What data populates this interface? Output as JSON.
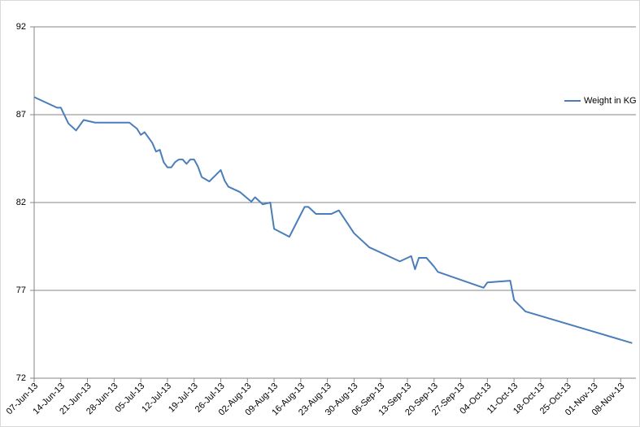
{
  "chart_data": {
    "type": "line",
    "x": [
      "2013-06-07",
      "2013-06-13",
      "2013-06-14",
      "2013-06-16",
      "2013-06-18",
      "2013-06-20",
      "2013-06-23",
      "2013-07-02",
      "2013-07-04",
      "2013-07-05",
      "2013-07-06",
      "2013-07-08",
      "2013-07-09",
      "2013-07-10",
      "2013-07-11",
      "2013-07-12",
      "2013-07-13",
      "2013-07-14",
      "2013-07-15",
      "2013-07-16",
      "2013-07-17",
      "2013-07-18",
      "2013-07-19",
      "2013-07-20",
      "2013-07-21",
      "2013-07-23",
      "2013-07-26",
      "2013-07-27",
      "2013-07-28",
      "2013-07-31",
      "2013-08-03",
      "2013-08-04",
      "2013-08-06",
      "2013-08-08",
      "2013-08-09",
      "2013-08-13",
      "2013-08-17",
      "2013-08-18",
      "2013-08-20",
      "2013-08-24",
      "2013-08-26",
      "2013-08-30",
      "2013-09-03",
      "2013-09-11",
      "2013-09-14",
      "2013-09-15",
      "2013-09-16",
      "2013-09-18",
      "2013-09-20",
      "2013-09-21",
      "2013-10-03",
      "2013-10-04",
      "2013-10-10",
      "2013-10-11",
      "2013-10-14",
      "2013-11-11"
    ],
    "series": [
      {
        "name": "Weight in KG",
        "color": "#4a7ebb",
        "values": [
          88.0,
          87.4,
          87.4,
          86.5,
          86.1,
          86.7,
          86.55,
          86.55,
          86.2,
          85.85,
          86.0,
          85.4,
          84.9,
          85.0,
          84.3,
          84.0,
          84.0,
          84.3,
          84.45,
          84.45,
          84.2,
          84.45,
          84.45,
          84.05,
          83.45,
          83.2,
          83.85,
          83.25,
          82.9,
          82.6,
          82.05,
          82.3,
          81.9,
          82.0,
          80.5,
          80.05,
          81.75,
          81.75,
          81.35,
          81.35,
          81.55,
          80.25,
          79.45,
          78.65,
          78.95,
          78.2,
          78.85,
          78.85,
          78.35,
          78.05,
          77.15,
          77.45,
          77.55,
          76.45,
          75.8,
          74.0
        ]
      }
    ],
    "xlim": [
      "2013-06-07",
      "2013-11-12"
    ],
    "xticks": [
      {
        "value": "2013-06-07",
        "label": "07-Jun-13"
      },
      {
        "value": "2013-06-14",
        "label": "14-Jun-13"
      },
      {
        "value": "2013-06-21",
        "label": "21-Jun-13"
      },
      {
        "value": "2013-06-28",
        "label": "28-Jun-13"
      },
      {
        "value": "2013-07-05",
        "label": "05-Jul-13"
      },
      {
        "value": "2013-07-12",
        "label": "12-Jul-13"
      },
      {
        "value": "2013-07-19",
        "label": "19-Jul-13"
      },
      {
        "value": "2013-07-26",
        "label": "26-Jul-13"
      },
      {
        "value": "2013-08-02",
        "label": "02-Aug-13"
      },
      {
        "value": "2013-08-09",
        "label": "09-Aug-13"
      },
      {
        "value": "2013-08-16",
        "label": "16-Aug-13"
      },
      {
        "value": "2013-08-23",
        "label": "23-Aug-13"
      },
      {
        "value": "2013-08-30",
        "label": "30-Aug-13"
      },
      {
        "value": "2013-09-06",
        "label": "06-Sep-13"
      },
      {
        "value": "2013-09-13",
        "label": "13-Sep-13"
      },
      {
        "value": "2013-09-20",
        "label": "20-Sep-13"
      },
      {
        "value": "2013-09-27",
        "label": "27-Sep-13"
      },
      {
        "value": "2013-10-04",
        "label": "04-Oct-13"
      },
      {
        "value": "2013-10-11",
        "label": "11-Oct-13"
      },
      {
        "value": "2013-10-18",
        "label": "18-Oct-13"
      },
      {
        "value": "2013-10-25",
        "label": "25-Oct-13"
      },
      {
        "value": "2013-11-01",
        "label": "01-Nov-13"
      },
      {
        "value": "2013-11-08",
        "label": "08-Nov-13"
      }
    ],
    "ylim": [
      72,
      92
    ],
    "yticks": [
      72,
      77,
      82,
      87,
      92
    ],
    "grid": true,
    "legend": "right"
  }
}
